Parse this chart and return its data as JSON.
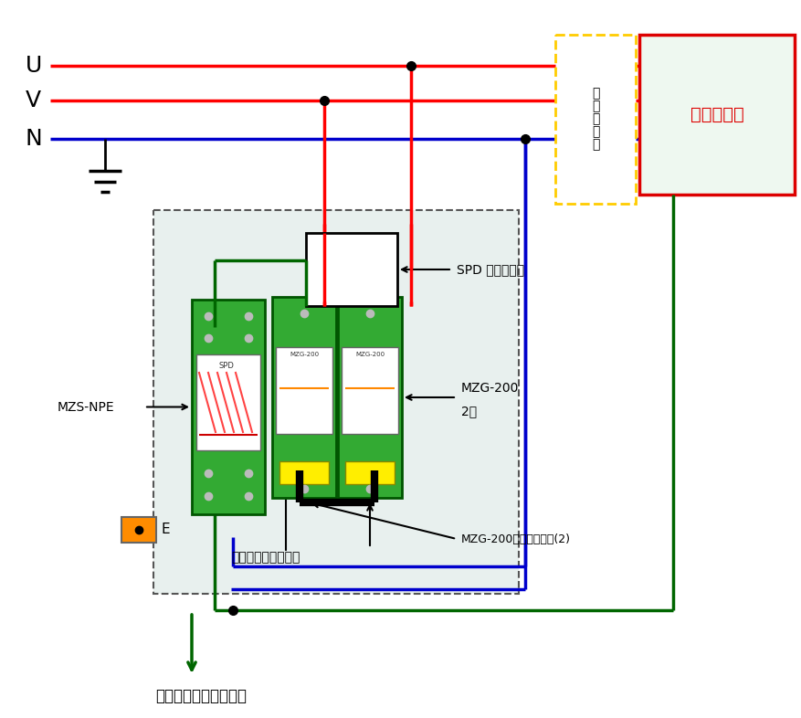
{
  "bg_color": "#ffffff",
  "dashed_box_bg": "#e8f0ee",
  "green_module": "#33aa33",
  "green_dark": "#005500",
  "green_wire": "#006600",
  "red_wire": "#ff0000",
  "blue_wire": "#0000cc",
  "black_color": "#000000",
  "orange_color": "#ff8c00",
  "yellow_fill": "#ffee00",
  "spd_box_color": "#ffcc00",
  "protected_box_color": "#dd0000",
  "protected_bg": "#eef8f0",
  "leakage_label": "漏\n電\n遥\n断\n器",
  "protected_label": "被保護機器",
  "spd_sep_label": "SPD 外部分離器",
  "mzg200_line1": "MZG-200",
  "mzg200_line2": "2つ",
  "mzsnpe_label": "MZS-NPE",
  "shortbar_label": "MZG-200ショートバー(2)",
  "short_lead_label": "ショート用リード線",
  "bonding_label": "ボンディング用バーへ",
  "e_label": "E",
  "uvn_labels": [
    "U",
    "V",
    "N"
  ]
}
